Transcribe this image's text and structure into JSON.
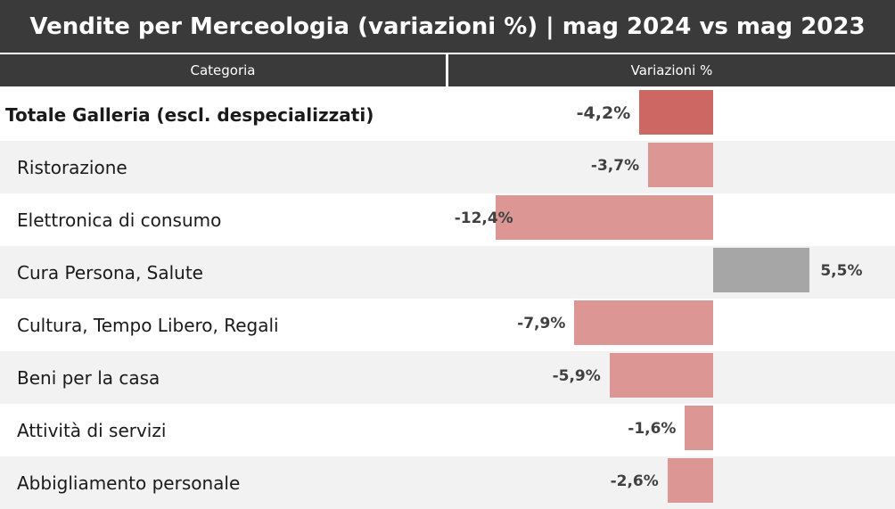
{
  "title": "Vendite per Merceologia (variazioni %) | mag 2024 vs mag 2023",
  "headers": {
    "category": "Categoria",
    "variation": "Variazioni %"
  },
  "colors": {
    "header_bg": "#3a3a3a",
    "total_bar": "#cd6763",
    "negative_bar": "#dc9795",
    "positive_bar": "#a6a6a6",
    "alt_row": "#f2f2f2"
  },
  "chart_data": {
    "type": "bar",
    "orientation": "horizontal",
    "categories": [
      "Totale Galleria (escl. despecializzati)",
      "Ristorazione",
      "Elettronica di consumo",
      "Cura Persona, Salute",
      "Cultura, Tempo Libero, Regali",
      "Beni per la casa",
      "Attività di servizi",
      "Abbigliamento personale"
    ],
    "values": [
      -4.2,
      -3.7,
      -12.4,
      5.5,
      -7.9,
      -5.9,
      -1.6,
      -2.6
    ],
    "labels": [
      "-4,2%",
      "-3,7%",
      "-12,4%",
      "5,5%",
      "-7,9%",
      "-5,9%",
      "-1,6%",
      "-2,6%"
    ],
    "unit": "%",
    "xlim": [
      -12.4,
      5.5
    ]
  }
}
